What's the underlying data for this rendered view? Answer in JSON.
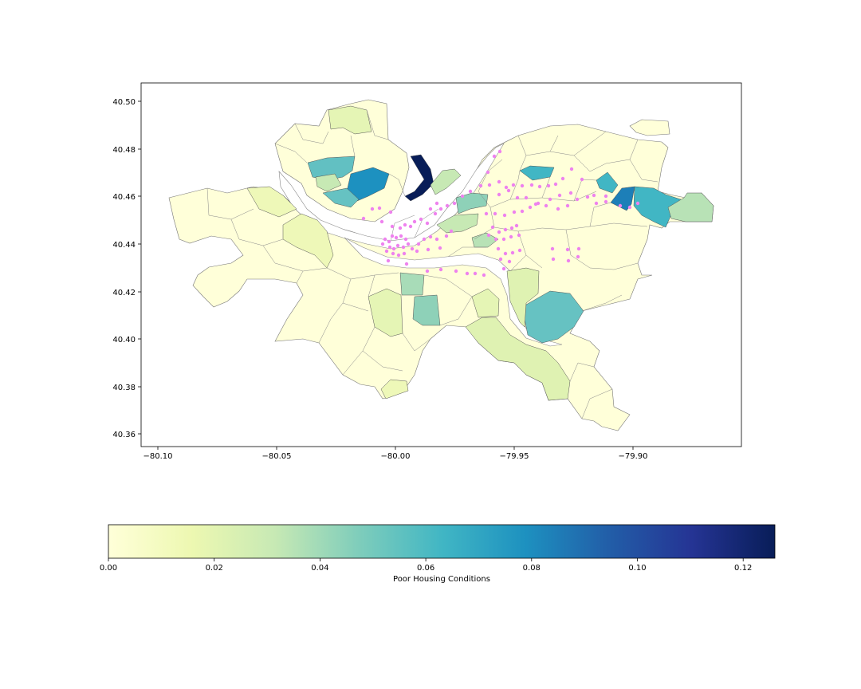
{
  "chart_data": {
    "type": "choropleth",
    "x_ticks": [
      "−80.10",
      "−80.05",
      "−80.00",
      "−79.95",
      "−79.90"
    ],
    "y_ticks": [
      "40.50",
      "40.48",
      "40.46",
      "40.44",
      "40.42",
      "40.40",
      "40.38",
      "40.36"
    ],
    "x_range": [
      -80.113,
      -79.897
    ],
    "y_range": [
      40.355,
      40.508
    ],
    "points_color": "#ee82ee",
    "colorbar": {
      "label": "Poor Housing Conditions",
      "range": [
        0,
        0.126
      ],
      "ticks": [
        "0.00",
        "0.02",
        "0.04",
        "0.06",
        "0.08",
        "0.10",
        "0.12"
      ],
      "tick_values": [
        0,
        0.02,
        0.04,
        0.06,
        0.08,
        0.1,
        0.12
      ],
      "colormap": "YlGnBu",
      "stops": [
        "#ffffd9",
        "#edf8b1",
        "#c7e9b4",
        "#7fcdbb",
        "#41b6c4",
        "#1d91c0",
        "#225ea8",
        "#253494",
        "#081d58"
      ]
    }
  }
}
